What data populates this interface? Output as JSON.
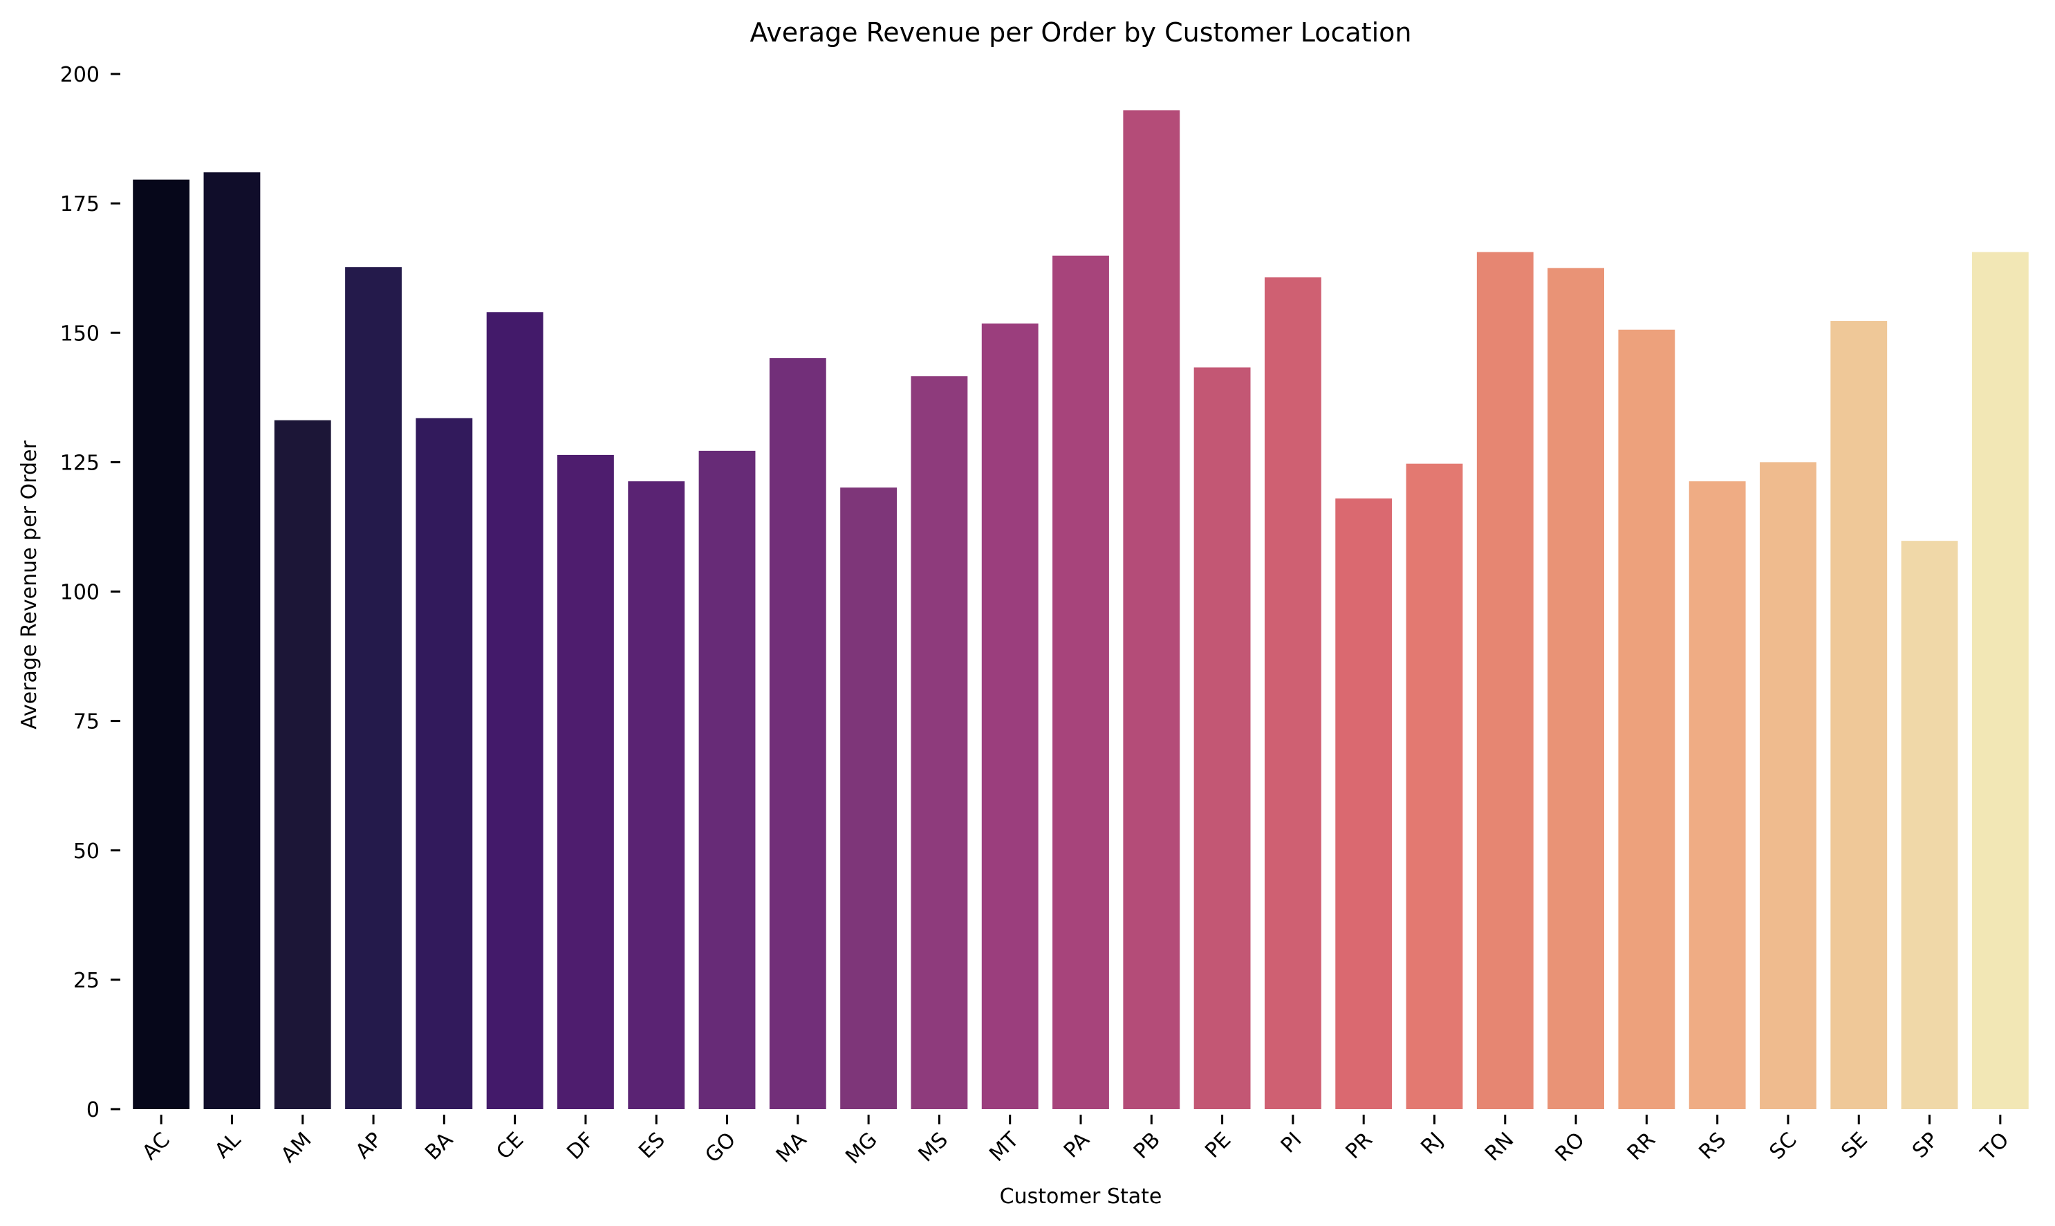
{
  "chart_data": {
    "type": "bar",
    "title": "Average Revenue per Order by Customer Location",
    "xlabel": "Customer State",
    "ylabel": "Average Revenue per Order",
    "ylim": [
      0,
      200
    ],
    "yticks": [
      "0",
      "25",
      "50",
      "75",
      "100",
      "125",
      "150",
      "175",
      "200"
    ],
    "grid": false,
    "legend": "none",
    "categories": [
      "AC",
      "AL",
      "AM",
      "AP",
      "BA",
      "CE",
      "DF",
      "ES",
      "GO",
      "MA",
      "MG",
      "MS",
      "MT",
      "PA",
      "PB",
      "PE",
      "PI",
      "PR",
      "RJ",
      "RN",
      "RO",
      "RR",
      "RS",
      "SC",
      "SE",
      "SP",
      "TO"
    ],
    "values": [
      179.6,
      181.0,
      133.1,
      162.7,
      133.5,
      154.0,
      126.4,
      121.3,
      127.2,
      145.1,
      120.1,
      141.6,
      151.8,
      164.9,
      193.0,
      143.3,
      160.7,
      118.0,
      124.7,
      165.6,
      162.5,
      150.6,
      121.3,
      125.0,
      152.3,
      109.8,
      165.6
    ],
    "colors": [
      "#06071a",
      "#100d2a",
      "#1c1637",
      "#241a4b",
      "#321a5c",
      "#431a6a",
      "#4e1d6e",
      "#5a2373",
      "#672b77",
      "#722f79",
      "#7e3679",
      "#8e3b7c",
      "#9b3e7d",
      "#a7447b",
      "#b44c78",
      "#c35774",
      "#cf6072",
      "#da6970",
      "#e37971",
      "#e68672",
      "#e99376",
      "#eda17c",
      "#efac84",
      "#efbb8e",
      "#efc898",
      "#f0d8a8",
      "#f2e7b5"
    ]
  }
}
